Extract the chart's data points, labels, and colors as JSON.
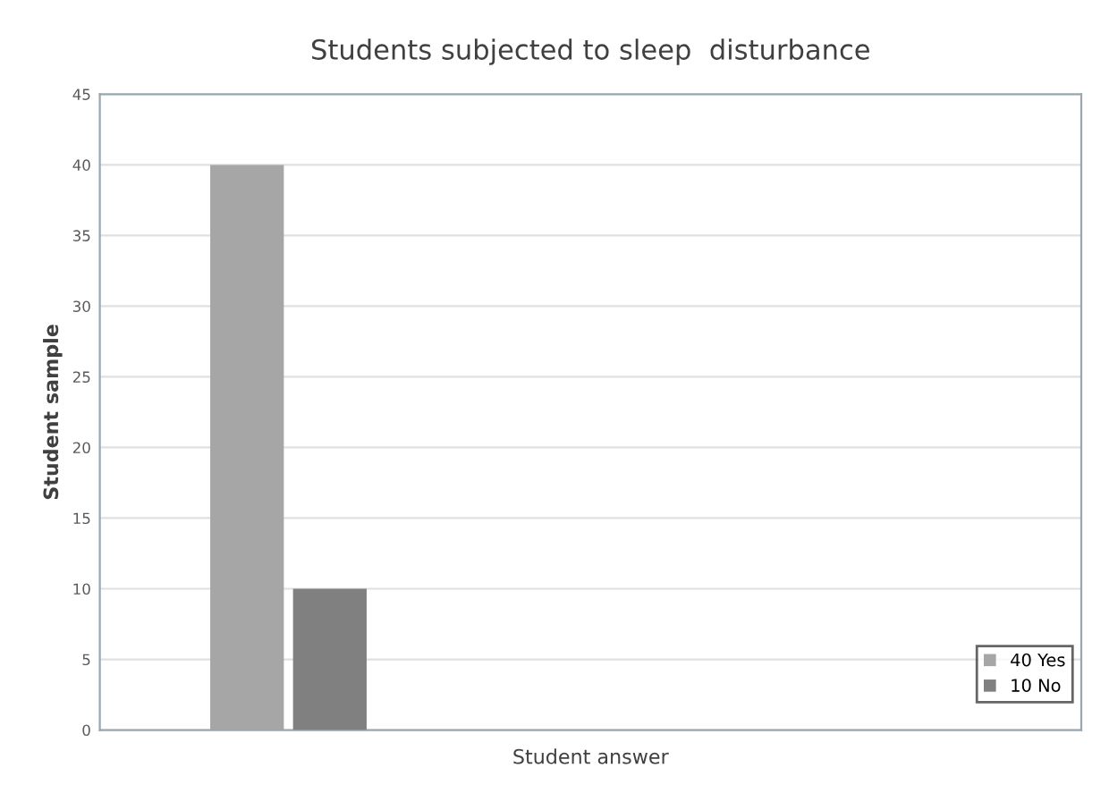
{
  "chart_data": {
    "type": "bar",
    "title": "Students subjected to sleep  disturbance",
    "xlabel": "Student answer",
    "ylabel": "Student sample",
    "categories": [
      null
    ],
    "series": [
      {
        "name": "40 Yes",
        "color": "#a6a6a6",
        "values": [
          40
        ]
      },
      {
        "name": "10 No",
        "color": "#808080",
        "values": [
          10
        ]
      }
    ],
    "ylim": [
      0,
      45
    ],
    "yticks": [
      0,
      5,
      10,
      15,
      20,
      25,
      30,
      35,
      40,
      45
    ],
    "grid": "y",
    "legend": "bottom right"
  }
}
